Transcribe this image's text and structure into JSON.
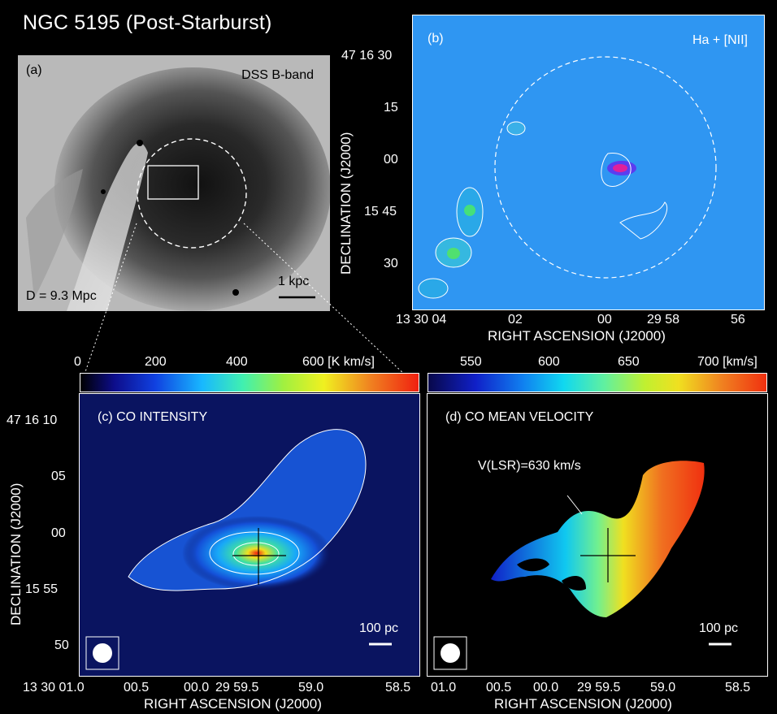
{
  "title": "NGC 5195 (Post-Starburst)",
  "panel_a": {
    "label": "(a)",
    "band": "DSS B-band",
    "distance": "D = 9.3 Mpc",
    "scale": "1 kpc"
  },
  "panel_b": {
    "label": "(b)",
    "line": "Ha + [NII]",
    "y_ticks": [
      "47 16 30",
      "15",
      "00",
      "15 45",
      "30"
    ],
    "x_ticks": [
      "13 30 04",
      "02",
      "00",
      "29 58",
      "56"
    ],
    "xlabel": "RIGHT ASCENSION (J2000)",
    "ylabel": "DECLINATION (J2000)"
  },
  "panel_c": {
    "label": "(c) CO INTENSITY",
    "colorbar_ticks": [
      "0",
      "200",
      "400",
      "600 [K km/s]"
    ],
    "scale": "100 pc",
    "y_ticks": [
      "47 16 10",
      "05",
      "00",
      "15 55",
      "50"
    ],
    "x_ticks": [
      "13 30 01.0",
      "00.5",
      "00.0",
      "29 59.5",
      "59.0",
      "58.5"
    ],
    "xlabel": "RIGHT ASCENSION (J2000)",
    "ylabel": "DECLINATION (J2000)"
  },
  "panel_d": {
    "label": "(d) CO MEAN VELOCITY",
    "colorbar_ticks": [
      "550",
      "600",
      "650",
      "700 [km/s]"
    ],
    "annotation": "V(LSR)=630 km/s",
    "scale": "100 pc",
    "x_ticks": [
      "01.0",
      "00.5",
      "00.0",
      "29 59.5",
      "59.0",
      "58.5"
    ],
    "xlabel": "RIGHT ASCENSION (J2000)"
  },
  "colors": {
    "background": "#000000",
    "halpha_field": "#2f96f2",
    "co_field": "#0a1460",
    "velocity_low": "#1020c8",
    "velocity_high": "#f03010"
  }
}
